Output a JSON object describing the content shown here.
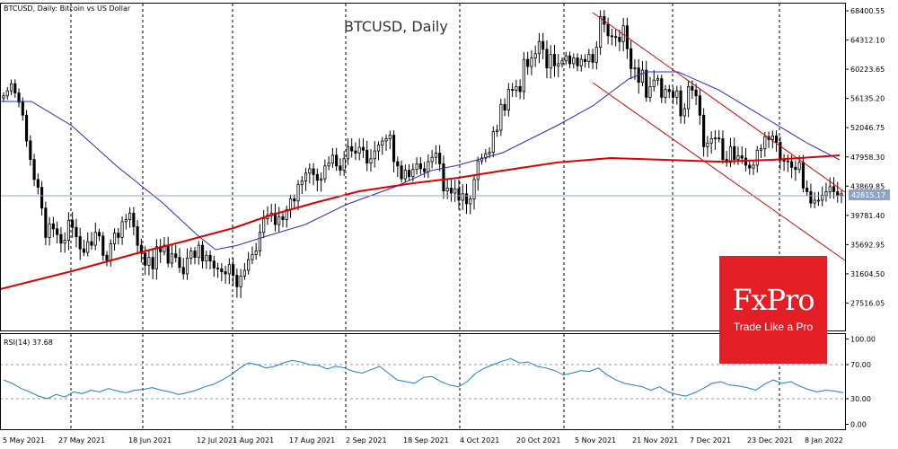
{
  "header": {
    "main_label": "BTCUSD, Daily:  Bitcoin vs US Dollar",
    "rsi_label": "RSI(14) 37.68"
  },
  "chart_data": {
    "type": "candlestick",
    "title": "BTCUSD, Daily",
    "current_price": "42815.17",
    "y_ticks": [
      "68400.55",
      "64312.10",
      "60223.65",
      "56135.20",
      "52046.75",
      "47958.30",
      "43869.85",
      "39781.40",
      "35692.95",
      "31604.50",
      "27516.05"
    ],
    "y_tick_values": [
      68400.55,
      64312.1,
      60223.65,
      56135.2,
      52046.75,
      47958.3,
      43869.85,
      39781.4,
      35692.95,
      31604.5,
      27516.05
    ],
    "rsi_ticks": [
      "100.00",
      "70.00",
      "30.00",
      "0.00"
    ],
    "rsi_tick_values": [
      100,
      70,
      30,
      0
    ],
    "x_labels": [
      "5 May 2021",
      "27 May 2021",
      "18 Jun 2021",
      "12 Jul 2021",
      "1 Aug 2021",
      "17 Aug 2021",
      "2 Sep 2021",
      "18 Sep 2021",
      "4 Oct 2021",
      "20 Oct 2021",
      "5 Nov 2021",
      "21 Nov 2021",
      "7 Dec 2021",
      "23 Dec 2021",
      "8 Jan 2022"
    ],
    "series_close": [
      56500,
      57200,
      58200,
      56900,
      55600,
      53800,
      50200,
      47600,
      44800,
      43700,
      40800,
      36700,
      38600,
      37900,
      37100,
      35900,
      36300,
      39100,
      38100,
      36800,
      35100,
      34600,
      36100,
      35600,
      37400,
      36900,
      34200,
      33500,
      35800,
      37300,
      36700,
      38900,
      39200,
      40100,
      38200,
      35600,
      34500,
      32800,
      33900,
      32300,
      35400,
      34700,
      35600,
      33100,
      34400,
      33900,
      32500,
      31600,
      33800,
      34800,
      33900,
      35600,
      33400,
      34200,
      33400,
      32400,
      32300,
      31900,
      31600,
      32900,
      31400,
      29800,
      31300,
      32100,
      33600,
      34300,
      34800,
      37400,
      39300,
      39800,
      40100,
      38500,
      39600,
      39200,
      40600,
      42100,
      41800,
      44100,
      44600,
      45700,
      46300,
      45500,
      44700,
      44900,
      46700,
      47100,
      48200,
      46700,
      46100,
      47700,
      49400,
      48800,
      48500,
      49300,
      48900,
      47100,
      47700,
      48800,
      49600,
      50200,
      50500,
      51000,
      47300,
      46700,
      44900,
      46100,
      45200,
      46200,
      47000,
      46300,
      45900,
      47300,
      47900,
      48500,
      47000,
      43200,
      43600,
      42900,
      43500,
      41900,
      42800,
      41400,
      42100,
      44800,
      47400,
      47800,
      48400,
      48600,
      51500,
      51700,
      55300,
      54500,
      57400,
      57300,
      57800,
      57100,
      61600,
      60600,
      61800,
      62400,
      64100,
      63000,
      60400,
      62300,
      60700,
      61000,
      61400,
      62100,
      61000,
      61800,
      60700,
      61600,
      61300,
      62300,
      61200,
      63300,
      67600,
      66500,
      64900,
      64800,
      64700,
      64100,
      66300,
      63100,
      60300,
      60400,
      58400,
      60100,
      56300,
      57800,
      58700,
      58900,
      56300,
      57400,
      57100,
      56300,
      57200,
      53700,
      54700,
      57800,
      57300,
      56500,
      53800,
      49400,
      49900,
      50500,
      50600,
      50500,
      47600,
      47200,
      49400,
      47600,
      48100,
      47800,
      46800,
      46400,
      46800,
      48900,
      49100,
      50800,
      50400,
      50900,
      50000,
      47500,
      47400,
      47300,
      46500,
      46200,
      47200,
      43600,
      43100,
      41500,
      41900,
      41900,
      42600,
      43100,
      43800,
      43100,
      42600,
      42800
    ]
  }
}
